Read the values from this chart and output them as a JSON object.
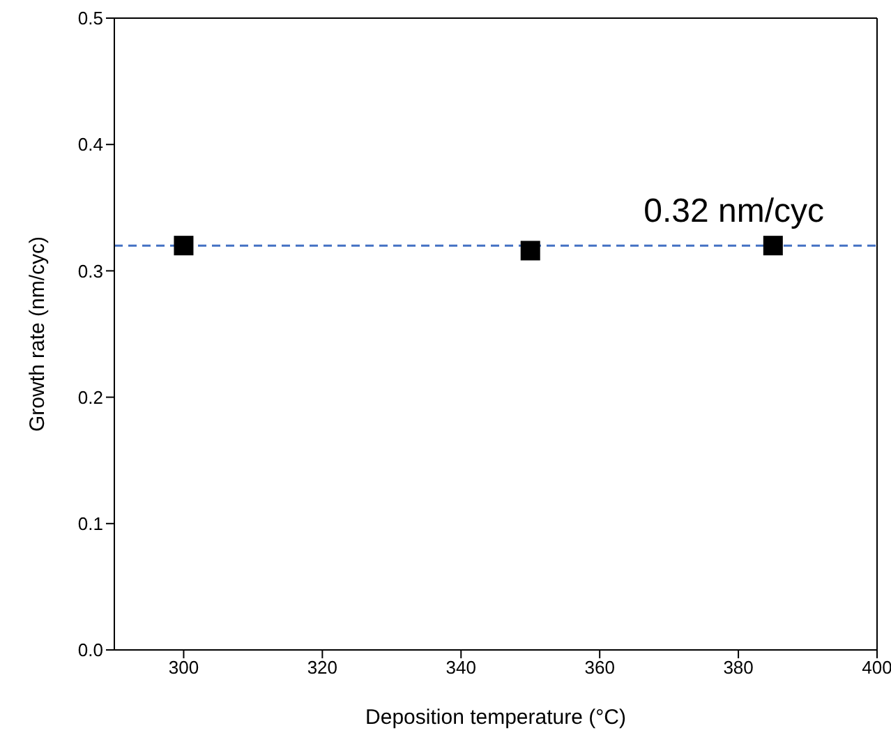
{
  "chart_data": {
    "type": "scatter",
    "xlabel": "Deposition temperature (°C)",
    "ylabel": "Growth rate (nm/cyc)",
    "x": [
      300,
      350,
      385
    ],
    "series": [
      {
        "color": "#000000",
        "values": [
          0.32,
          0.316,
          0.32
        ]
      }
    ],
    "marker": "square",
    "xlim": [
      290,
      400
    ],
    "xticks": [
      300,
      320,
      340,
      360,
      380,
      400
    ],
    "ylim": [
      0,
      0.5
    ],
    "yticks": [
      {
        "value": 0,
        "label": "0.0"
      },
      0.1,
      0.2,
      0.3,
      0.4,
      0.5
    ],
    "ref_lines": [
      {
        "axis": "y",
        "value": 0.32,
        "label": "0.32 nm/cyc",
        "color": "#4472c4",
        "line_style": "dashed"
      }
    ],
    "grid": false,
    "legend": false
  }
}
